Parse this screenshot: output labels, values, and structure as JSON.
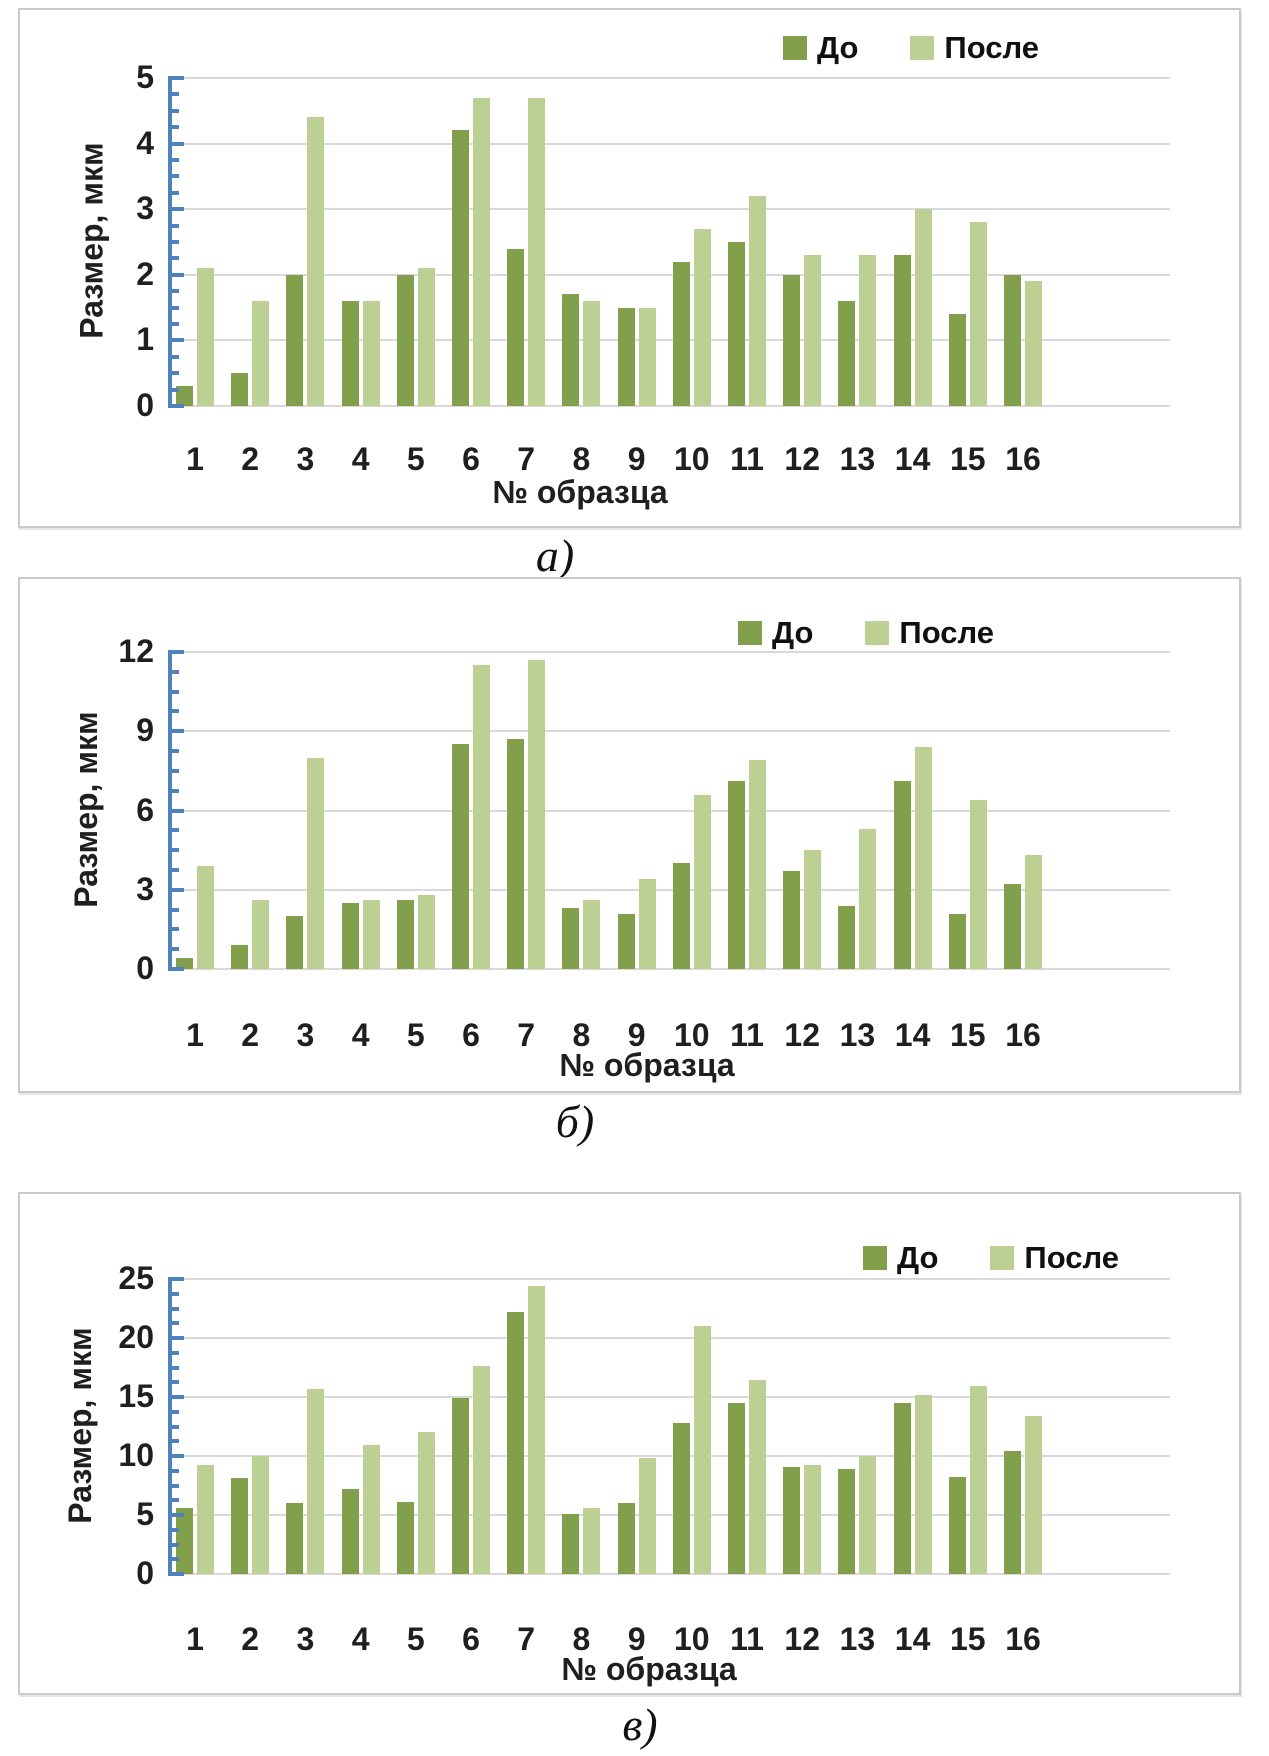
{
  "figure": {
    "captions": {
      "a": "а)",
      "b": "б)",
      "v": "в)"
    }
  },
  "colors": {
    "do": "#82A04B",
    "posle": "#BDD093",
    "grid": "#D9D9D9",
    "axis": "#4F81BD",
    "panel_border": "#C9C9C9",
    "text": "#1F1F1F",
    "background": "#FFFFFF"
  },
  "legend": {
    "do_label": "До",
    "posle_label": "После",
    "position": "top-right"
  },
  "chart_data": [
    {
      "id": "a",
      "type": "bar",
      "caption": "а)",
      "title": "",
      "ylabel": "Размер, мкм",
      "xlabel": "№ образца",
      "categories": [
        "1",
        "2",
        "3",
        "4",
        "5",
        "6",
        "7",
        "8",
        "9",
        "10",
        "11",
        "12",
        "13",
        "14",
        "15",
        "16"
      ],
      "series": [
        {
          "name": "До",
          "color": "#82A04B",
          "values": [
            0.3,
            0.5,
            2.0,
            1.6,
            2.0,
            4.2,
            2.4,
            1.7,
            1.5,
            2.2,
            2.5,
            2.0,
            1.6,
            2.3,
            1.4,
            2.0
          ]
        },
        {
          "name": "После",
          "color": "#BDD093",
          "values": [
            2.1,
            1.6,
            4.4,
            1.6,
            2.1,
            4.7,
            4.7,
            1.6,
            1.5,
            2.7,
            3.2,
            2.3,
            2.3,
            3.0,
            2.8,
            1.9
          ]
        }
      ],
      "ylim": [
        0,
        5
      ],
      "yticks": [
        0,
        1,
        2,
        3,
        4,
        5
      ],
      "grid": true,
      "legend_position": "top-right"
    },
    {
      "id": "b",
      "type": "bar",
      "caption": "б)",
      "title": "",
      "ylabel": "Размер, мкм",
      "xlabel": "№ образца",
      "categories": [
        "1",
        "2",
        "3",
        "4",
        "5",
        "6",
        "7",
        "8",
        "9",
        "10",
        "11",
        "12",
        "13",
        "14",
        "15",
        "16"
      ],
      "series": [
        {
          "name": "До",
          "color": "#82A04B",
          "values": [
            0.4,
            0.9,
            2.0,
            2.5,
            2.6,
            8.5,
            8.7,
            2.3,
            2.1,
            4.0,
            7.1,
            3.7,
            2.4,
            7.1,
            2.1,
            3.2
          ]
        },
        {
          "name": "После",
          "color": "#BDD093",
          "values": [
            3.9,
            2.6,
            8.0,
            2.6,
            2.8,
            11.5,
            11.7,
            2.6,
            3.4,
            6.6,
            7.9,
            4.5,
            5.3,
            8.4,
            6.4,
            4.3
          ]
        }
      ],
      "ylim": [
        0,
        12
      ],
      "yticks": [
        0,
        3,
        6,
        9,
        12
      ],
      "grid": true,
      "legend_position": "top-right"
    },
    {
      "id": "v",
      "type": "bar",
      "caption": "в)",
      "title": "",
      "ylabel": "Размер, мкм",
      "xlabel": "№ образца",
      "categories": [
        "1",
        "2",
        "3",
        "4",
        "5",
        "6",
        "7",
        "8",
        "9",
        "10",
        "11",
        "12",
        "13",
        "14",
        "15",
        "16"
      ],
      "series": [
        {
          "name": "До",
          "color": "#82A04B",
          "values": [
            5.6,
            8.1,
            6.0,
            7.2,
            6.1,
            14.9,
            22.2,
            5.1,
            6.0,
            12.8,
            14.5,
            9.1,
            8.9,
            14.5,
            8.2,
            10.4
          ]
        },
        {
          "name": "После",
          "color": "#BDD093",
          "values": [
            9.2,
            10.0,
            15.7,
            10.9,
            12.0,
            17.6,
            24.4,
            5.6,
            9.8,
            21.0,
            16.4,
            9.2,
            10.0,
            15.2,
            15.9,
            13.4
          ]
        }
      ],
      "ylim": [
        0,
        25
      ],
      "yticks": [
        0,
        5,
        10,
        15,
        20,
        25
      ],
      "grid": true,
      "legend_position": "top-right"
    }
  ]
}
